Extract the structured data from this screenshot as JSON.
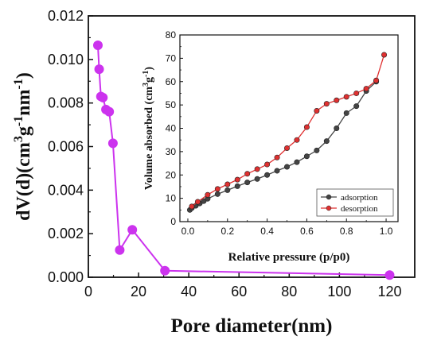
{
  "colors": {
    "main_series": "#cc33ee",
    "adsorption": "#444444",
    "desorption": "#e03030",
    "axis": "#111111"
  },
  "chart_data": [
    {
      "type": "line",
      "xlabel": "Pore diameter(nm)",
      "ylabel_parts": [
        "dV(d)(cm",
        "3",
        "g",
        "-1",
        "nm",
        "-1",
        ")"
      ],
      "xlim": [
        0,
        130
      ],
      "ylim": [
        0,
        0.012
      ],
      "xticks": [
        0,
        20,
        40,
        60,
        80,
        100,
        120
      ],
      "yticks": [
        "0.000",
        "0.002",
        "0.004",
        "0.006",
        "0.008",
        "0.010",
        "0.012"
      ],
      "ytick_values": [
        0,
        0.002,
        0.004,
        0.006,
        0.008,
        0.01,
        0.012
      ],
      "series": [
        {
          "x": [
            3.8,
            4.3,
            5.0,
            5.8,
            7.0,
            8.3,
            9.8,
            12.5,
            17.5,
            30.5,
            120
          ],
          "y": [
            0.01065,
            0.00955,
            0.0083,
            0.00825,
            0.0077,
            0.0076,
            0.00615,
            0.00125,
            0.00218,
            0.0003,
            0.0001
          ]
        }
      ]
    },
    {
      "type": "line",
      "xlabel": "Relative pressure (p/p0)",
      "ylabel": "Volume absorbed (cm",
      "ylabel_sup": "3",
      "ylabel_tail": "g",
      "ylabel_sup2": "-1",
      "ylabel_end": ")",
      "xlim": [
        -0.04,
        1.06
      ],
      "ylim": [
        0,
        80
      ],
      "xticks": [
        "0.0",
        "0.2",
        "0.4",
        "0.6",
        "0.8",
        "1.0"
      ],
      "xtick_values": [
        0,
        0.2,
        0.4,
        0.6,
        0.8,
        1.0
      ],
      "yticks": [
        0,
        10,
        20,
        30,
        40,
        50,
        60,
        70,
        80
      ],
      "legend_position": "bottom-right",
      "series": [
        {
          "name": "adsorption",
          "x": [
            0.01,
            0.02,
            0.04,
            0.06,
            0.08,
            0.1,
            0.15,
            0.2,
            0.25,
            0.3,
            0.35,
            0.4,
            0.45,
            0.5,
            0.55,
            0.6,
            0.65,
            0.7,
            0.75,
            0.8,
            0.85,
            0.9,
            0.95
          ],
          "y": [
            5.0,
            5.8,
            6.8,
            7.8,
            8.8,
            9.8,
            11.8,
            13.5,
            15.2,
            16.8,
            18.3,
            20.0,
            21.8,
            23.5,
            25.5,
            28.0,
            30.5,
            34.5,
            40.0,
            46.5,
            49.5,
            56.0,
            60.0
          ]
        },
        {
          "name": "desorption",
          "x": [
            0.99,
            0.95,
            0.9,
            0.85,
            0.8,
            0.75,
            0.7,
            0.65,
            0.6,
            0.55,
            0.5,
            0.45,
            0.4,
            0.35,
            0.3,
            0.25,
            0.2,
            0.15,
            0.1,
            0.05,
            0.02
          ],
          "y": [
            71.5,
            60.5,
            57.0,
            55.0,
            53.5,
            52.0,
            50.5,
            47.5,
            40.5,
            35.0,
            31.5,
            27.5,
            24.5,
            22.5,
            20.5,
            18.0,
            16.0,
            14.0,
            11.5,
            8.5,
            6.5
          ]
        }
      ]
    }
  ]
}
